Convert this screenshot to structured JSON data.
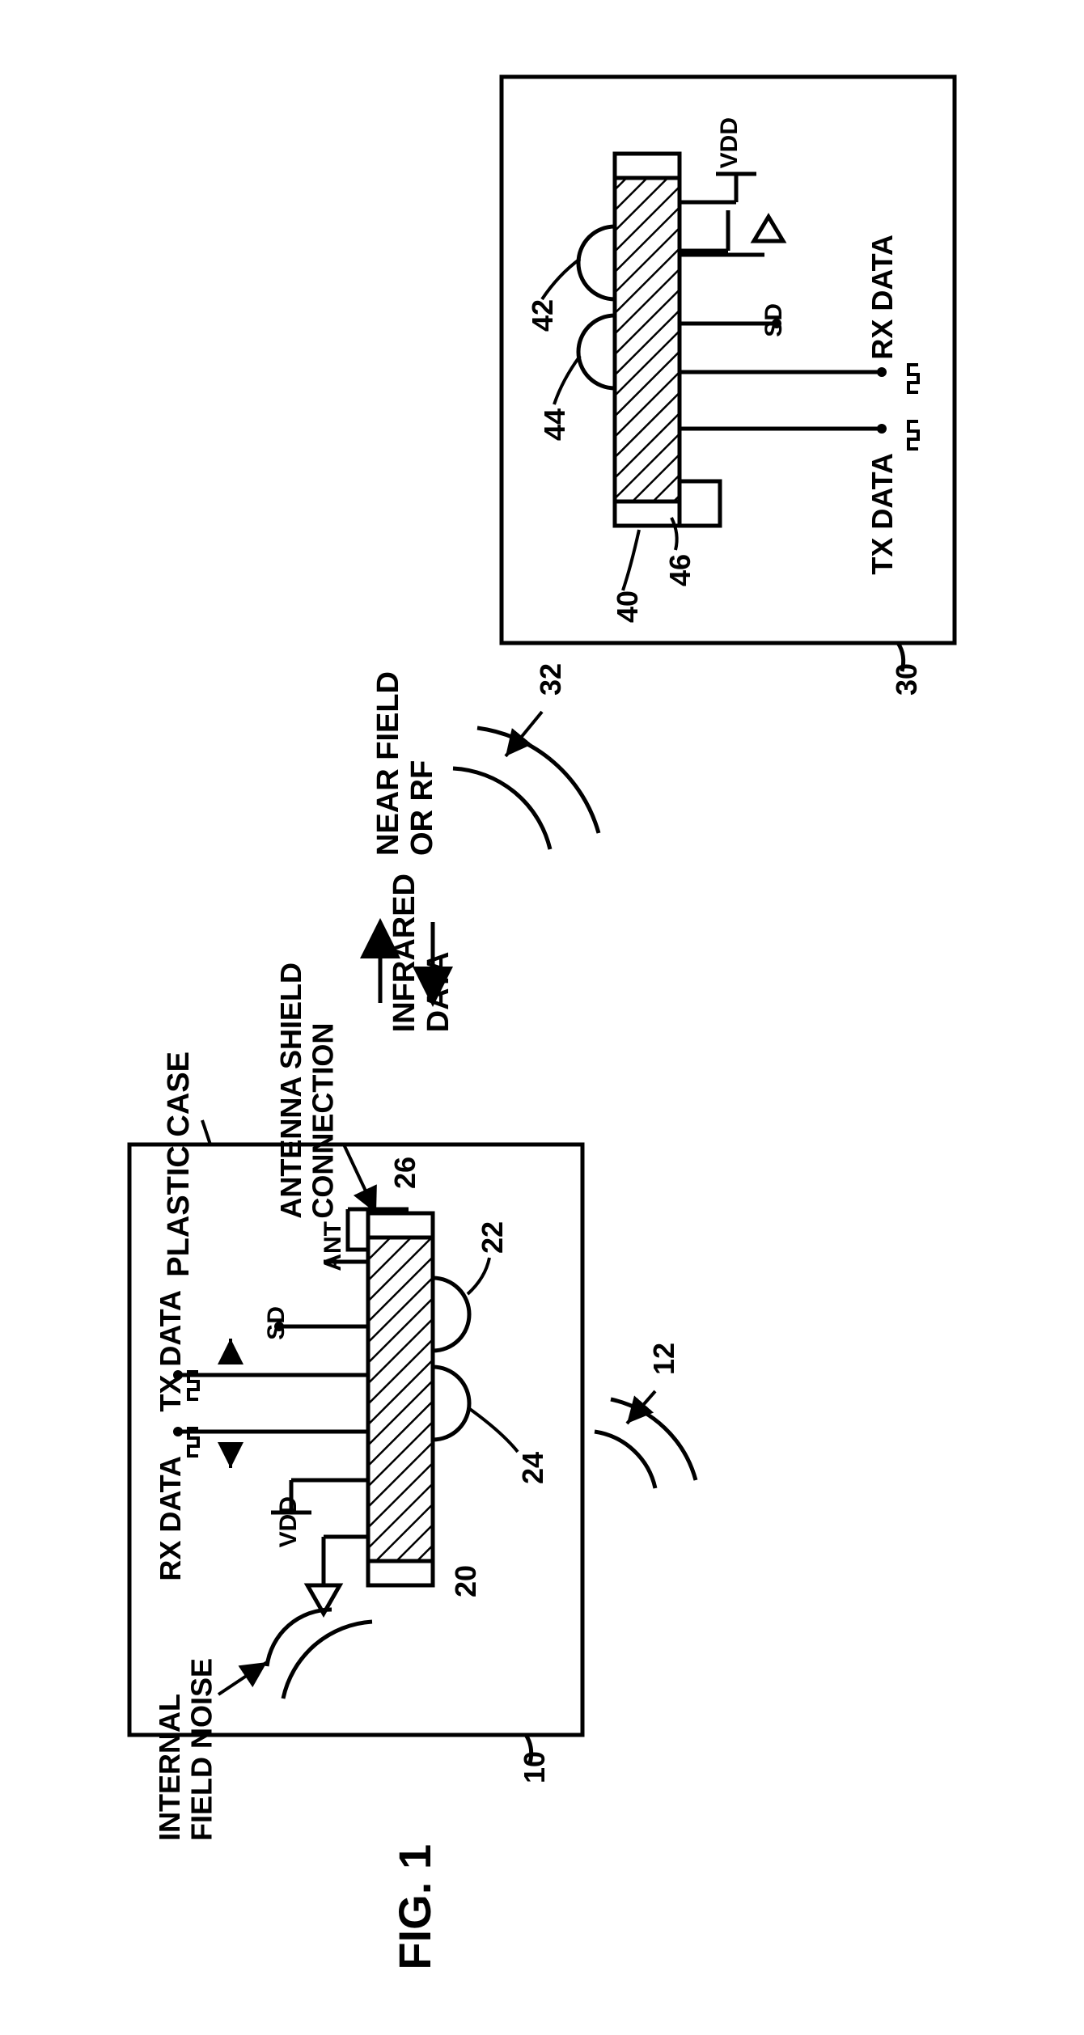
{
  "figure_label": "FIG. 1",
  "left_device": {
    "case_label": "PLASTIC CASE",
    "antenna_label": "ANTENNA SHIELD CONNECTION",
    "ant_pin": "ANT",
    "sd_pin": "SD",
    "vdd_pin": "VDD",
    "tx_label": "TX DATA",
    "rx_label": "RX DATA",
    "noise_label": "INTERNAL FIELD NOISE",
    "ref_case": "10",
    "ref_noise": "12",
    "ref_ic": "20",
    "ref_lens_top": "22",
    "ref_lens_bottom": "24",
    "ref_shield": "26"
  },
  "middle": {
    "ir_label": "INFRARED DATA",
    "nf_label": "NEAR FIELD OR RF",
    "ref_nf": "32"
  },
  "right_device": {
    "vdd_pin": "VDD",
    "sd_pin": "SD",
    "rx_label": "RX DATA",
    "tx_label": "TX DATA",
    "ref_case": "30",
    "ref_ic": "40",
    "ref_lens_top": "42",
    "ref_lens_bottom": "44",
    "ref_shield": "46"
  },
  "style": {
    "stroke": "#000000",
    "stroke_width": 5,
    "stroke_thin": 4,
    "font_size_label": 38,
    "font_size_fig": 56,
    "background": "#ffffff"
  }
}
